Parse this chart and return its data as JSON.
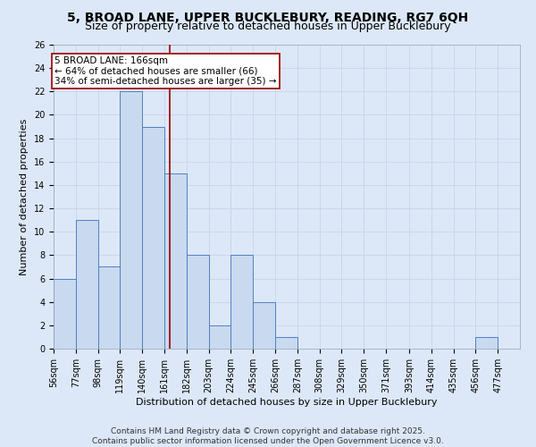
{
  "title": "5, BROAD LANE, UPPER BUCKLEBURY, READING, RG7 6QH",
  "subtitle": "Size of property relative to detached houses in Upper Bucklebury",
  "xlabel": "Distribution of detached houses by size in Upper Bucklebury",
  "ylabel": "Number of detached properties",
  "bins": [
    56,
    77,
    98,
    119,
    140,
    161,
    182,
    203,
    224,
    245,
    266,
    287,
    308,
    329,
    350,
    371,
    393,
    414,
    435,
    456,
    477
  ],
  "counts": [
    6,
    11,
    7,
    22,
    19,
    15,
    8,
    2,
    8,
    4,
    1,
    0,
    0,
    0,
    0,
    0,
    0,
    0,
    0,
    1
  ],
  "bar_color": "#c8d9f0",
  "bar_edge_color": "#5080c0",
  "vline_x": 166,
  "vline_color": "#990000",
  "annotation_text": "5 BROAD LANE: 166sqm\n← 64% of detached houses are smaller (66)\n34% of semi-detached houses are larger (35) →",
  "annotation_bbox_edgecolor": "#990000",
  "annotation_bbox_facecolor": "white",
  "ylim": [
    0,
    26
  ],
  "yticks": [
    0,
    2,
    4,
    6,
    8,
    10,
    12,
    14,
    16,
    18,
    20,
    22,
    24,
    26
  ],
  "grid_color": "#c8d4e8",
  "background_color": "#dce8f8",
  "footer": "Contains HM Land Registry data © Crown copyright and database right 2025.\nContains public sector information licensed under the Open Government Licence v3.0.",
  "title_fontsize": 10,
  "subtitle_fontsize": 9,
  "axis_label_fontsize": 8,
  "tick_fontsize": 7,
  "annotation_fontsize": 7.5,
  "footer_fontsize": 6.5
}
